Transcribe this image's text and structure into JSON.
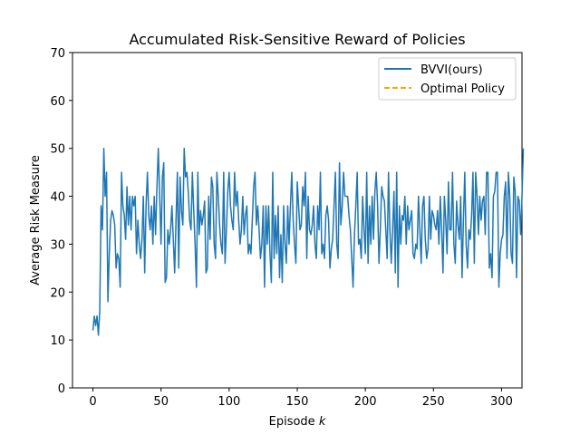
{
  "chart_data": {
    "type": "line",
    "title": "Accumulated Risk-Sensitive Reward of Policies",
    "xlabel": "Episode",
    "xlabel_var": "k",
    "ylabel": "Average Risk Measure",
    "xlim": [
      -15,
      315
    ],
    "ylim": [
      0,
      70
    ],
    "xticks": [
      0,
      50,
      100,
      150,
      200,
      250,
      300
    ],
    "yticks": [
      0,
      10,
      20,
      30,
      40,
      50,
      60,
      70
    ],
    "grid": false,
    "legend_position": "top-right",
    "series": [
      {
        "name": "BVVI(ours)",
        "color": "#1f77b4",
        "style": "solid",
        "x_start": 0,
        "x_step": 1,
        "values": [
          12,
          15,
          13,
          15,
          11,
          16,
          38,
          33,
          50,
          40,
          45,
          18,
          28,
          35,
          37,
          36,
          34,
          25,
          28,
          27,
          21,
          45,
          38,
          36,
          31,
          42,
          34,
          40,
          33,
          40,
          38,
          40,
          28,
          35,
          30,
          27,
          31,
          40,
          24,
          38,
          45,
          36,
          33,
          38,
          30,
          40,
          32,
          42,
          50,
          40,
          30,
          44,
          47,
          22,
          23,
          33,
          30,
          33,
          38,
          31,
          24,
          35,
          45,
          25,
          44,
          37,
          34,
          50,
          44,
          45,
          41,
          35,
          33,
          45,
          37,
          30,
          21,
          45,
          32,
          37,
          34,
          36,
          39,
          24,
          25,
          40,
          31,
          44,
          42,
          30,
          27,
          45,
          40,
          34,
          30,
          28,
          45,
          26,
          33,
          41,
          45,
          38,
          35,
          33,
          45,
          38,
          41,
          35,
          30,
          33,
          40,
          32,
          36,
          38,
          28,
          30,
          28,
          35,
          42,
          45,
          34,
          38,
          33,
          27,
          30,
          38,
          21,
          38,
          30,
          38,
          28,
          22,
          45,
          27,
          36,
          28,
          38,
          23,
          32,
          22,
          38,
          30,
          26,
          38,
          30,
          38,
          45,
          35,
          30,
          26,
          43,
          38,
          33,
          34,
          42,
          38,
          45,
          27,
          40,
          33,
          32,
          34,
          38,
          30,
          27,
          38,
          33,
          45,
          28,
          30,
          27,
          36,
          38,
          35,
          25,
          29,
          31,
          38,
          45,
          30,
          27,
          47,
          34,
          38,
          45,
          40,
          40,
          40,
          36,
          33,
          27,
          21,
          32,
          38,
          45,
          30,
          31,
          27,
          40,
          33,
          28,
          45,
          26,
          38,
          30,
          40,
          31,
          41,
          45,
          38,
          26,
          33,
          42,
          40,
          39,
          33,
          27,
          45,
          33,
          26,
          33,
          41,
          24,
          45,
          21,
          38,
          30,
          36,
          35,
          40,
          30,
          38,
          33,
          35,
          37,
          28,
          27,
          30,
          29,
          40,
          33,
          26,
          38,
          40,
          31,
          27,
          29,
          40,
          31,
          37,
          36,
          34,
          33,
          37,
          30,
          40,
          33,
          24,
          40,
          35,
          28,
          43,
          33,
          33,
          45,
          30,
          26,
          39,
          34,
          31,
          40,
          23,
          35,
          45,
          30,
          25,
          33,
          31,
          36,
          45,
          26,
          45,
          40,
          32,
          40,
          35,
          39,
          40,
          32,
          45,
          45,
          25,
          28,
          23,
          40,
          41,
          45,
          45,
          21,
          28,
          31,
          32,
          40,
          43,
          27,
          45,
          40,
          28,
          26,
          44,
          41,
          23,
          40,
          39,
          32,
          40,
          50
        ]
      },
      {
        "name": "Optimal Policy",
        "color": "#ffa500",
        "style": "dashed",
        "values": []
      }
    ]
  }
}
